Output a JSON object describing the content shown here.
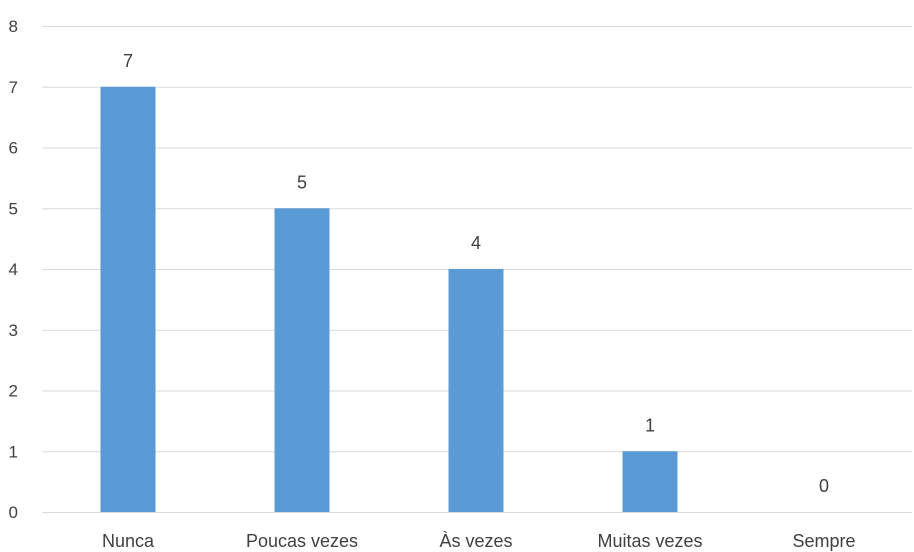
{
  "chart_data": {
    "type": "bar",
    "title": "",
    "xlabel": "",
    "ylabel": "",
    "categories": [
      "Nunca",
      "Poucas vezes",
      "Às vezes",
      "Muitas vezes",
      "Sempre"
    ],
    "values": [
      7,
      5,
      4,
      1,
      0
    ],
    "data_labels": [
      "7",
      "5",
      "4",
      "1",
      "0"
    ],
    "ylim": [
      0,
      8
    ],
    "yticks": [
      "0",
      "1",
      "2",
      "3",
      "4",
      "5",
      "6",
      "7",
      "8"
    ],
    "grid": true,
    "legend": "none",
    "colors": {
      "bar": "#5B9BD5",
      "grid": "#D9D9D9",
      "text": "#404040"
    }
  }
}
